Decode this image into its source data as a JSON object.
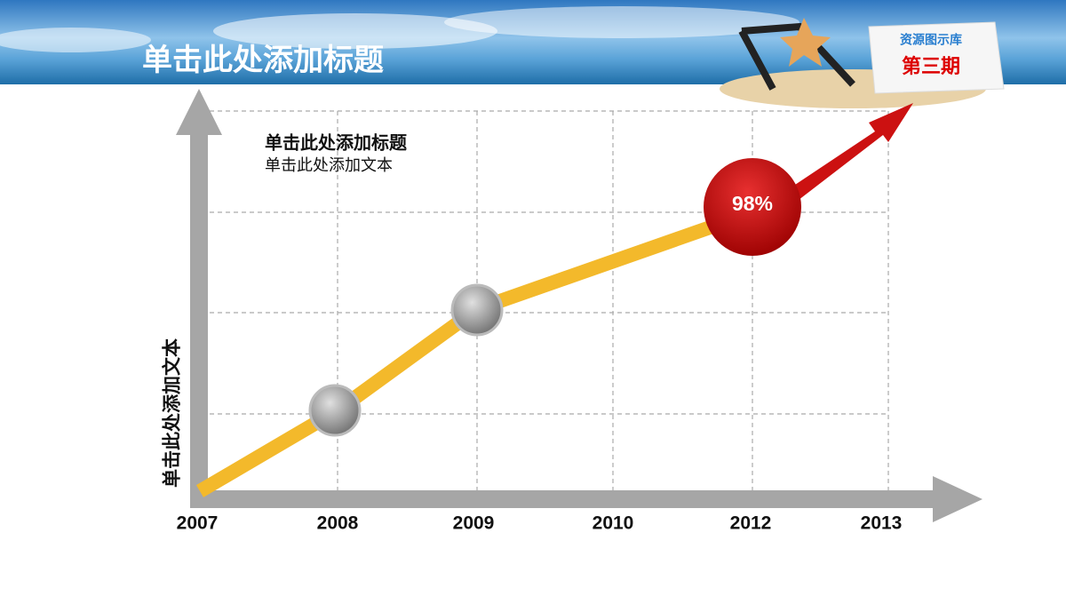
{
  "header": {
    "title": "单击此处添加标题"
  },
  "badge": {
    "line1": "资源图示库",
    "line2": "第三期"
  },
  "callout": {
    "title": "单击此处添加标题",
    "text": "单击此处添加文本"
  },
  "y_axis_label": "单击此处添加文本",
  "x_labels": [
    "2007",
    "2008",
    "2009",
    "2010",
    "2012",
    "2013"
  ],
  "highlight": {
    "label": "98%"
  }
}
